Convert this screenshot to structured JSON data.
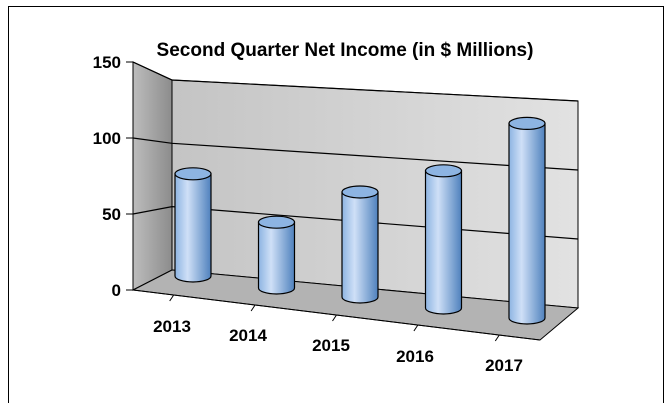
{
  "chart_data": {
    "type": "bar",
    "style": "3d-cylinder",
    "title": "Second Quarter Net Income (in $ Millions)",
    "categories": [
      "2013",
      "2014",
      "2015",
      "2016",
      "2017"
    ],
    "values": [
      73,
      47,
      75,
      98,
      139
    ],
    "ylim": [
      0,
      150
    ],
    "yticks": [
      0,
      50,
      100,
      150
    ],
    "grid": true,
    "legend": "none",
    "colors": {
      "bar_light": "#cfe0f7",
      "bar_mid": "#8db4e2",
      "bar_dark": "#4f81bd",
      "bar_edge": "#000000",
      "back_wall": "#d0d0d0",
      "side_wall": "#9a9a9a",
      "floor": "#b8b8b8"
    }
  }
}
